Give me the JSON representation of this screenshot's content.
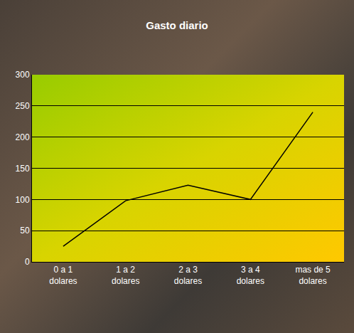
{
  "chart_data": {
    "type": "line",
    "title": "Gasto diario",
    "categories": [
      "0 a 1 dolares",
      "1 a 2 dolares",
      "2 a 3 dolares",
      "3 a 4 dolares",
      "mas de 5 dolares"
    ],
    "values": [
      25,
      98,
      123,
      100,
      240
    ],
    "color": "#000000",
    "ylim": [
      0,
      300
    ],
    "yticks": [
      0,
      50,
      100,
      150,
      200,
      250,
      300
    ],
    "grid": true
  }
}
